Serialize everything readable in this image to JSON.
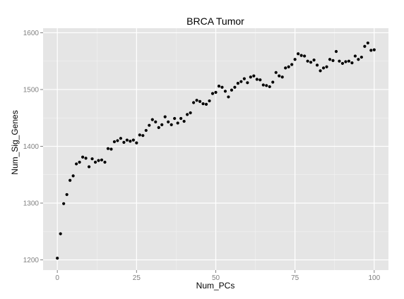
{
  "chart_data": {
    "type": "scatter",
    "title": "BRCA Tumor",
    "xlabel": "Num_PCs",
    "ylabel": "Num_Sig_Genes",
    "xlim": [
      -4.5,
      104.5
    ],
    "ylim": [
      1182,
      1608
    ],
    "x_ticks": [
      0,
      25,
      50,
      75,
      100
    ],
    "x_tick_labels": [
      "0",
      "25",
      "50",
      "75",
      "100"
    ],
    "y_ticks": [
      1200,
      1300,
      1400,
      1500,
      1600
    ],
    "y_tick_labels": [
      "1200",
      "1300",
      "1400",
      "1500",
      "1600"
    ],
    "grid": true,
    "legend": "none",
    "colors": {
      "panel": "#e5e5e5",
      "grid_major": "#ffffff",
      "grid_minor": "#f2f2f2",
      "point": "#000000"
    },
    "x": [
      0,
      1,
      2,
      3,
      4,
      5,
      6,
      7,
      8,
      9,
      10,
      11,
      12,
      13,
      14,
      15,
      16,
      17,
      18,
      19,
      20,
      21,
      22,
      23,
      24,
      25,
      26,
      27,
      28,
      29,
      30,
      31,
      32,
      33,
      34,
      35,
      36,
      37,
      38,
      39,
      40,
      41,
      42,
      43,
      44,
      45,
      46,
      47,
      48,
      49,
      50,
      51,
      52,
      53,
      54,
      55,
      56,
      57,
      58,
      59,
      60,
      61,
      62,
      63,
      64,
      65,
      66,
      67,
      68,
      69,
      70,
      71,
      72,
      73,
      74,
      75,
      76,
      77,
      78,
      79,
      80,
      81,
      82,
      83,
      84,
      85,
      86,
      87,
      88,
      89,
      90,
      91,
      92,
      93,
      94,
      95,
      96,
      97,
      98,
      99,
      100
    ],
    "y": [
      1203,
      1246,
      1299,
      1315,
      1340,
      1348,
      1369,
      1372,
      1381,
      1379,
      1364,
      1378,
      1372,
      1375,
      1376,
      1372,
      1396,
      1395,
      1408,
      1410,
      1414,
      1407,
      1411,
      1409,
      1411,
      1406,
      1420,
      1419,
      1428,
      1437,
      1447,
      1443,
      1433,
      1438,
      1452,
      1443,
      1438,
      1449,
      1441,
      1449,
      1444,
      1456,
      1459,
      1477,
      1481,
      1479,
      1475,
      1474,
      1480,
      1493,
      1495,
      1506,
      1504,
      1497,
      1487,
      1499,
      1504,
      1511,
      1514,
      1519,
      1512,
      1522,
      1524,
      1518,
      1517,
      1508,
      1507,
      1505,
      1513,
      1530,
      1524,
      1522,
      1538,
      1540,
      1544,
      1553,
      1563,
      1560,
      1559,
      1550,
      1548,
      1552,
      1543,
      1533,
      1538,
      1540,
      1553,
      1551,
      1567,
      1550,
      1546,
      1549,
      1550,
      1547,
      1559,
      1553,
      1557,
      1576,
      1582,
      1569,
      1570
    ]
  }
}
